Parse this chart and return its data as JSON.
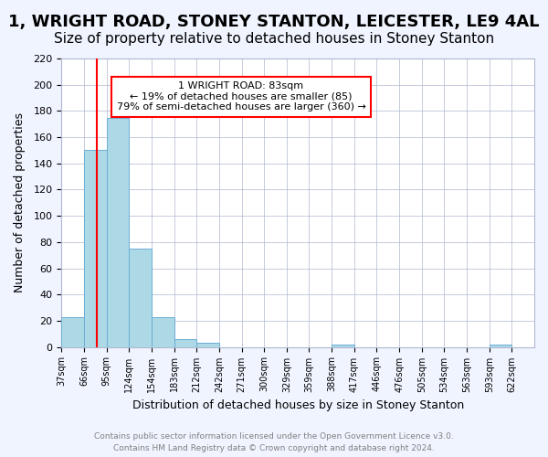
{
  "title": "1, WRIGHT ROAD, STONEY STANTON, LEICESTER, LE9 4AL",
  "subtitle": "Size of property relative to detached houses in Stoney Stanton",
  "xlabel": "Distribution of detached houses by size in Stoney Stanton",
  "ylabel": "Number of detached properties",
  "footer_line1": "Contains HM Land Registry data © Crown copyright and database right 2024.",
  "footer_line2": "Contains public sector information licensed under the Open Government Licence v3.0.",
  "bin_edges": [
    37,
    66,
    95,
    124,
    153,
    182,
    211,
    240,
    269,
    298,
    327,
    356,
    385,
    414,
    443,
    472,
    501,
    530,
    559,
    588,
    617,
    646
  ],
  "bin_labels": [
    "37sqm",
    "66sqm",
    "95sqm",
    "124sqm",
    "154sqm",
    "183sqm",
    "212sqm",
    "242sqm",
    "271sqm",
    "300sqm",
    "329sqm",
    "359sqm",
    "388sqm",
    "417sqm",
    "446sqm",
    "476sqm",
    "505sqm",
    "534sqm",
    "563sqm",
    "593sqm",
    "622sqm"
  ],
  "bar_heights": [
    23,
    150,
    175,
    75,
    23,
    6,
    3,
    0,
    0,
    0,
    0,
    0,
    2,
    0,
    0,
    0,
    0,
    0,
    0,
    2,
    0
  ],
  "bar_color": "#add8e6",
  "bar_edgecolor": "#6baed6",
  "property_line_x": 83,
  "property_line_color": "red",
  "annotation_title": "1 WRIGHT ROAD: 83sqm",
  "annotation_line1": "← 19% of detached houses are smaller (85)",
  "annotation_line2": "79% of semi-detached houses are larger (360) →",
  "annotation_box_color": "white",
  "annotation_box_edgecolor": "red",
  "ylim": [
    0,
    220
  ],
  "xlim": [
    37,
    646
  ],
  "background_color": "#f0f4ff",
  "plot_background": "white",
  "grid_color": "#b0b8d0",
  "title_fontsize": 13,
  "subtitle_fontsize": 11
}
